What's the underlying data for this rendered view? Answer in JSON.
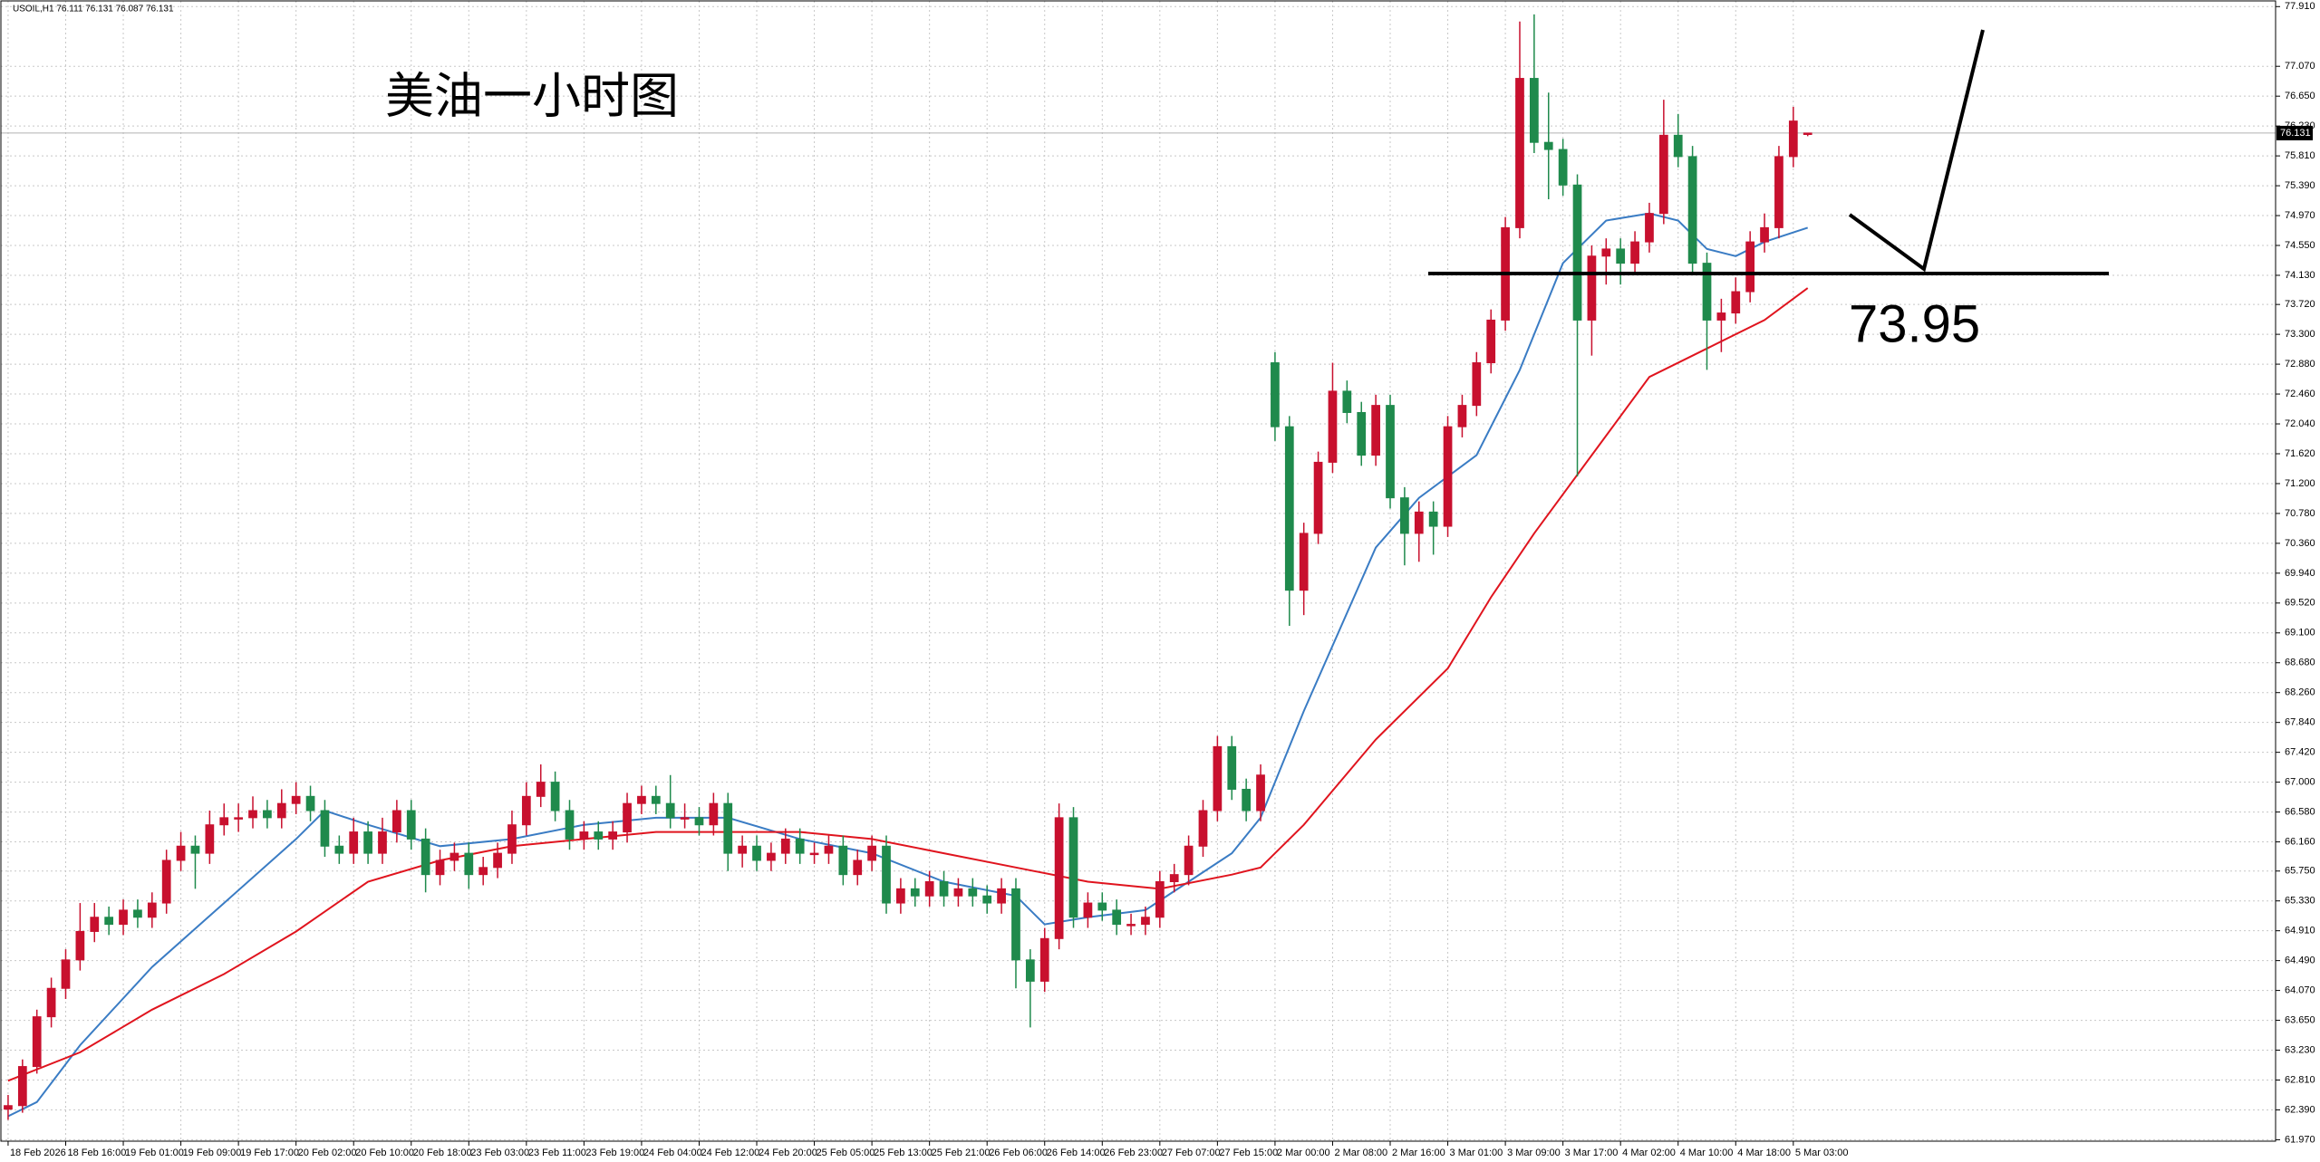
{
  "chart_data": {
    "type": "candlestick",
    "title": "美油一小时图",
    "info": "USOIL,H1  76.111 76.131 76.087 76.131",
    "annotation": "73.95",
    "up_color": "#c8102e",
    "down_color": "#1f8a4c",
    "grid": true,
    "ylim": [
      61.95,
      77.99
    ],
    "xlim": [
      -0.5,
      157.5
    ],
    "last_price": {
      "value": 76.131,
      "label": "76.131"
    },
    "yticks": [
      {
        "value": 61.97,
        "label": "61.970"
      },
      {
        "value": 62.39,
        "label": "62.390"
      },
      {
        "value": 62.81,
        "label": "62.810"
      },
      {
        "value": 63.23,
        "label": "63.230"
      },
      {
        "value": 63.65,
        "label": "63.650"
      },
      {
        "value": 64.07,
        "label": "64.070"
      },
      {
        "value": 64.49,
        "label": "64.490"
      },
      {
        "value": 64.91,
        "label": "64.910"
      },
      {
        "value": 65.33,
        "label": "65.330"
      },
      {
        "value": 65.75,
        "label": "65.750"
      },
      {
        "value": 66.16,
        "label": "66.160"
      },
      {
        "value": 66.58,
        "label": "66.580"
      },
      {
        "value": 67.0,
        "label": "67.000"
      },
      {
        "value": 67.42,
        "label": "67.420"
      },
      {
        "value": 67.84,
        "label": "67.840"
      },
      {
        "value": 68.26,
        "label": "68.260"
      },
      {
        "value": 68.68,
        "label": "68.680"
      },
      {
        "value": 69.1,
        "label": "69.100"
      },
      {
        "value": 69.52,
        "label": "69.520"
      },
      {
        "value": 69.94,
        "label": "69.940"
      },
      {
        "value": 70.36,
        "label": "70.360"
      },
      {
        "value": 70.78,
        "label": "70.780"
      },
      {
        "value": 71.2,
        "label": "71.200"
      },
      {
        "value": 71.62,
        "label": "71.620"
      },
      {
        "value": 72.04,
        "label": "72.040"
      },
      {
        "value": 72.46,
        "label": "72.460"
      },
      {
        "value": 72.88,
        "label": "72.880"
      },
      {
        "value": 73.3,
        "label": "73.300"
      },
      {
        "value": 73.72,
        "label": "73.720"
      },
      {
        "value": 74.13,
        "label": "74.130"
      },
      {
        "value": 74.55,
        "label": "74.550"
      },
      {
        "value": 74.97,
        "label": "74.970"
      },
      {
        "value": 75.39,
        "label": "75.390"
      },
      {
        "value": 75.81,
        "label": "75.810"
      },
      {
        "value": 76.23,
        "label": "76.230"
      },
      {
        "value": 76.65,
        "label": "76.650"
      },
      {
        "value": 77.07,
        "label": "77.070"
      },
      {
        "value": 77.91,
        "label": "77.910"
      }
    ],
    "xticks": [
      {
        "value": 0,
        "label": "18 Feb 2026"
      },
      {
        "value": 4,
        "label": "18 Feb 16:00"
      },
      {
        "value": 8,
        "label": "19 Feb 01:00"
      },
      {
        "value": 12,
        "label": "19 Feb 09:00"
      },
      {
        "value": 16,
        "label": "19 Feb 17:00"
      },
      {
        "value": 20,
        "label": "20 Feb 02:00"
      },
      {
        "value": 24,
        "label": "20 Feb 10:00"
      },
      {
        "value": 28,
        "label": "20 Feb 18:00"
      },
      {
        "value": 32,
        "label": "23 Feb 03:00"
      },
      {
        "value": 36,
        "label": "23 Feb 11:00"
      },
      {
        "value": 40,
        "label": "23 Feb 19:00"
      },
      {
        "value": 44,
        "label": "24 Feb 04:00"
      },
      {
        "value": 48,
        "label": "24 Feb 12:00"
      },
      {
        "value": 52,
        "label": "24 Feb 20:00"
      },
      {
        "value": 56,
        "label": "25 Feb 05:00"
      },
      {
        "value": 60,
        "label": "25 Feb 13:00"
      },
      {
        "value": 64,
        "label": "25 Feb 21:00"
      },
      {
        "value": 68,
        "label": "26 Feb 06:00"
      },
      {
        "value": 72,
        "label": "26 Feb 14:00"
      },
      {
        "value": 76,
        "label": "26 Feb 23:00"
      },
      {
        "value": 80,
        "label": "27 Feb 07:00"
      },
      {
        "value": 84,
        "label": "27 Feb 15:00"
      },
      {
        "value": 88,
        "label": "2 Mar 00:00"
      },
      {
        "value": 92,
        "label": "2 Mar 08:00"
      },
      {
        "value": 96,
        "label": "2 Mar 16:00"
      },
      {
        "value": 100,
        "label": "3 Mar 01:00"
      },
      {
        "value": 104,
        "label": "3 Mar 09:00"
      },
      {
        "value": 108,
        "label": "3 Mar 17:00"
      },
      {
        "value": 112,
        "label": "4 Mar 02:00"
      },
      {
        "value": 116,
        "label": "4 Mar 10:00"
      },
      {
        "value": 120,
        "label": "4 Mar 18:00"
      },
      {
        "value": 124,
        "label": "5 Mar 03:00"
      }
    ],
    "ohlc": [
      [
        62.4,
        62.6,
        62.25,
        62.45
      ],
      [
        62.45,
        63.1,
        62.35,
        63.0
      ],
      [
        63.0,
        63.8,
        62.9,
        63.7
      ],
      [
        63.7,
        64.25,
        63.55,
        64.1
      ],
      [
        64.1,
        64.65,
        63.95,
        64.5
      ],
      [
        64.5,
        65.3,
        64.35,
        64.9
      ],
      [
        64.9,
        65.3,
        64.75,
        65.1
      ],
      [
        65.1,
        65.25,
        64.85,
        65.0
      ],
      [
        65.0,
        65.35,
        64.85,
        65.2
      ],
      [
        65.2,
        65.35,
        64.95,
        65.1
      ],
      [
        65.1,
        65.45,
        64.95,
        65.3
      ],
      [
        65.3,
        66.05,
        65.15,
        65.9
      ],
      [
        65.9,
        66.3,
        65.75,
        66.1
      ],
      [
        66.1,
        66.25,
        65.5,
        66.0
      ],
      [
        66.0,
        66.6,
        65.85,
        66.4
      ],
      [
        66.4,
        66.7,
        66.25,
        66.5
      ],
      [
        66.5,
        66.7,
        66.3,
        66.5
      ],
      [
        66.5,
        66.8,
        66.35,
        66.6
      ],
      [
        66.6,
        66.75,
        66.35,
        66.5
      ],
      [
        66.5,
        66.9,
        66.35,
        66.7
      ],
      [
        66.7,
        67.0,
        66.55,
        66.8
      ],
      [
        66.8,
        66.95,
        66.45,
        66.6
      ],
      [
        66.6,
        66.75,
        65.95,
        66.1
      ],
      [
        66.1,
        66.25,
        65.85,
        66.0
      ],
      [
        66.0,
        66.5,
        65.85,
        66.3
      ],
      [
        66.3,
        66.45,
        65.85,
        66.0
      ],
      [
        66.0,
        66.5,
        65.85,
        66.3
      ],
      [
        66.3,
        66.75,
        66.15,
        66.6
      ],
      [
        66.6,
        66.75,
        66.05,
        66.2
      ],
      [
        66.2,
        66.35,
        65.45,
        65.7
      ],
      [
        65.7,
        66.05,
        65.55,
        65.9
      ],
      [
        65.9,
        66.15,
        65.75,
        66.0
      ],
      [
        66.0,
        66.15,
        65.5,
        65.7
      ],
      [
        65.7,
        65.95,
        65.55,
        65.8
      ],
      [
        65.8,
        66.15,
        65.65,
        66.0
      ],
      [
        66.0,
        66.6,
        65.85,
        66.4
      ],
      [
        66.4,
        67.0,
        66.25,
        66.8
      ],
      [
        66.8,
        67.25,
        66.65,
        67.0
      ],
      [
        67.0,
        67.15,
        66.45,
        66.6
      ],
      [
        66.6,
        66.75,
        66.05,
        66.2
      ],
      [
        66.2,
        66.45,
        66.05,
        66.3
      ],
      [
        66.3,
        66.45,
        66.05,
        66.2
      ],
      [
        66.2,
        66.45,
        66.05,
        66.3
      ],
      [
        66.3,
        66.85,
        66.15,
        66.7
      ],
      [
        66.7,
        66.95,
        66.55,
        66.8
      ],
      [
        66.8,
        66.95,
        66.55,
        66.7
      ],
      [
        66.7,
        67.1,
        66.35,
        66.5
      ],
      [
        66.5,
        66.7,
        66.35,
        66.5
      ],
      [
        66.5,
        66.65,
        66.25,
        66.4
      ],
      [
        66.4,
        66.85,
        66.25,
        66.7
      ],
      [
        66.7,
        66.85,
        65.75,
        66.0
      ],
      [
        66.0,
        66.25,
        65.8,
        66.1
      ],
      [
        66.1,
        66.25,
        65.75,
        65.9
      ],
      [
        65.9,
        66.15,
        65.75,
        66.0
      ],
      [
        66.0,
        66.35,
        65.85,
        66.2
      ],
      [
        66.2,
        66.35,
        65.85,
        66.0
      ],
      [
        66.0,
        66.15,
        65.85,
        66.0
      ],
      [
        66.0,
        66.25,
        65.85,
        66.1
      ],
      [
        66.1,
        66.25,
        65.55,
        65.7
      ],
      [
        65.7,
        66.05,
        65.55,
        65.9
      ],
      [
        65.9,
        66.25,
        65.75,
        66.1
      ],
      [
        66.1,
        66.25,
        65.15,
        65.3
      ],
      [
        65.3,
        65.65,
        65.15,
        65.5
      ],
      [
        65.5,
        65.65,
        65.25,
        65.4
      ],
      [
        65.4,
        65.75,
        65.25,
        65.6
      ],
      [
        65.6,
        65.75,
        65.25,
        65.4
      ],
      [
        65.4,
        65.65,
        65.25,
        65.5
      ],
      [
        65.5,
        65.65,
        65.25,
        65.4
      ],
      [
        65.4,
        65.55,
        65.15,
        65.3
      ],
      [
        65.3,
        65.65,
        65.15,
        65.5
      ],
      [
        65.5,
        65.65,
        64.1,
        64.5
      ],
      [
        64.5,
        64.65,
        63.55,
        64.2
      ],
      [
        64.2,
        64.95,
        64.05,
        64.8
      ],
      [
        64.8,
        66.7,
        64.65,
        66.5
      ],
      [
        66.5,
        66.65,
        64.95,
        65.1
      ],
      [
        65.1,
        65.45,
        64.95,
        65.3
      ],
      [
        65.3,
        65.45,
        65.05,
        65.2
      ],
      [
        65.2,
        65.35,
        64.85,
        65.0
      ],
      [
        65.0,
        65.15,
        64.85,
        65.0
      ],
      [
        65.0,
        65.25,
        64.85,
        65.1
      ],
      [
        65.1,
        65.75,
        64.95,
        65.6
      ],
      [
        65.6,
        65.85,
        65.45,
        65.7
      ],
      [
        65.7,
        66.25,
        65.55,
        66.1
      ],
      [
        66.1,
        66.75,
        65.95,
        66.6
      ],
      [
        66.6,
        67.65,
        66.45,
        67.5
      ],
      [
        67.5,
        67.65,
        66.75,
        66.9
      ],
      [
        66.9,
        67.05,
        66.45,
        66.6
      ],
      [
        66.6,
        67.25,
        66.45,
        67.1
      ],
      [
        72.9,
        73.05,
        71.8,
        72.0
      ],
      [
        72.0,
        72.15,
        69.2,
        69.7
      ],
      [
        69.7,
        70.65,
        69.35,
        70.5
      ],
      [
        70.5,
        71.65,
        70.35,
        71.5
      ],
      [
        71.5,
        72.9,
        71.35,
        72.5
      ],
      [
        72.5,
        72.65,
        72.05,
        72.2
      ],
      [
        72.2,
        72.35,
        71.45,
        71.6
      ],
      [
        71.6,
        72.45,
        71.45,
        72.3
      ],
      [
        72.3,
        72.45,
        70.85,
        71.0
      ],
      [
        71.0,
        71.15,
        70.05,
        70.5
      ],
      [
        70.5,
        70.95,
        70.1,
        70.8
      ],
      [
        70.8,
        70.95,
        70.2,
        70.6
      ],
      [
        70.6,
        72.15,
        70.45,
        72.0
      ],
      [
        72.0,
        72.45,
        71.85,
        72.3
      ],
      [
        72.3,
        73.05,
        72.15,
        72.9
      ],
      [
        72.9,
        73.65,
        72.75,
        73.5
      ],
      [
        73.5,
        74.95,
        73.35,
        74.8
      ],
      [
        74.8,
        77.7,
        74.65,
        76.9
      ],
      [
        76.9,
        77.8,
        75.85,
        76.0
      ],
      [
        76.0,
        76.7,
        75.2,
        75.9
      ],
      [
        75.9,
        76.05,
        75.25,
        75.4
      ],
      [
        75.4,
        75.55,
        71.3,
        73.5
      ],
      [
        73.5,
        74.55,
        73.0,
        74.4
      ],
      [
        74.4,
        74.65,
        74.0,
        74.5
      ],
      [
        74.5,
        74.65,
        74.0,
        74.3
      ],
      [
        74.3,
        74.75,
        74.15,
        74.6
      ],
      [
        74.6,
        75.15,
        74.45,
        75.0
      ],
      [
        75.0,
        76.6,
        74.85,
        76.1
      ],
      [
        76.1,
        76.4,
        75.65,
        75.8
      ],
      [
        75.8,
        75.95,
        74.15,
        74.3
      ],
      [
        74.3,
        74.45,
        72.8,
        73.5
      ],
      [
        73.5,
        73.8,
        73.05,
        73.6
      ],
      [
        73.6,
        74.1,
        73.45,
        73.9
      ],
      [
        73.9,
        74.75,
        73.75,
        74.6
      ],
      [
        74.6,
        75.0,
        74.45,
        74.8
      ],
      [
        74.8,
        75.95,
        74.65,
        75.8
      ],
      [
        75.8,
        76.5,
        75.65,
        76.3
      ],
      [
        76.111,
        76.131,
        76.087,
        76.131
      ]
    ],
    "lines": [
      {
        "color": "#3a7cc4",
        "x": [
          0,
          2,
          5,
          10,
          15,
          20,
          22,
          25,
          30,
          35,
          40,
          45,
          50,
          55,
          60,
          65,
          70,
          72,
          75,
          79,
          82,
          85,
          87,
          90,
          95,
          98,
          102,
          105,
          108,
          111,
          114,
          116,
          118,
          120,
          122,
          125
        ],
        "values": [
          62.3,
          62.5,
          63.3,
          64.4,
          65.3,
          66.2,
          66.6,
          66.4,
          66.1,
          66.2,
          66.4,
          66.5,
          66.5,
          66.2,
          66.0,
          65.6,
          65.4,
          65.0,
          65.1,
          65.2,
          65.6,
          66.0,
          66.5,
          68.0,
          70.3,
          71.0,
          71.6,
          72.8,
          74.3,
          74.9,
          75.0,
          74.9,
          74.5,
          74.4,
          74.6,
          74.8
        ]
      },
      {
        "color": "#e0141e",
        "x": [
          0,
          5,
          10,
          15,
          20,
          25,
          30,
          35,
          40,
          45,
          50,
          55,
          60,
          65,
          70,
          75,
          80,
          85,
          87,
          90,
          95,
          100,
          103,
          106,
          110,
          114,
          118,
          122,
          125
        ],
        "values": [
          62.8,
          63.2,
          63.8,
          64.3,
          64.9,
          65.6,
          65.9,
          66.1,
          66.2,
          66.3,
          66.3,
          66.3,
          66.2,
          66.0,
          65.8,
          65.6,
          65.5,
          65.7,
          65.8,
          66.4,
          67.6,
          68.6,
          69.6,
          70.5,
          71.6,
          72.7,
          73.1,
          73.5,
          73.95
        ]
      }
    ]
  }
}
